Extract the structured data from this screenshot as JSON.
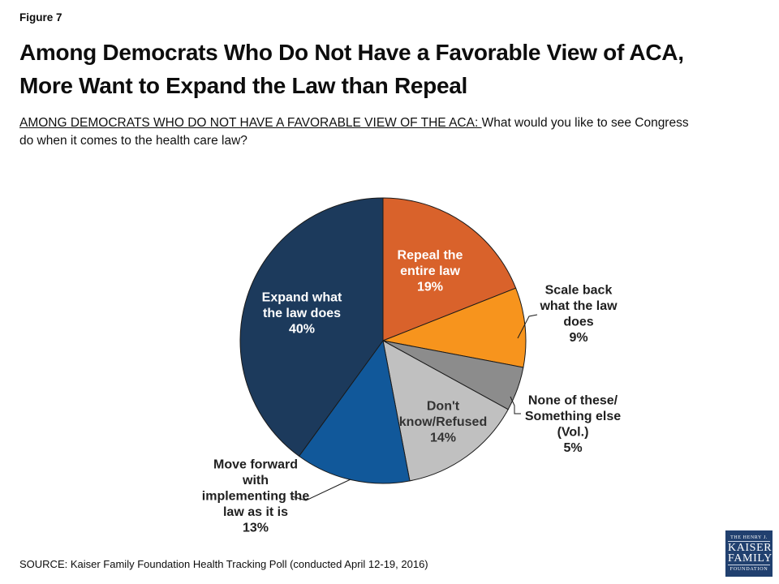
{
  "figure_label": "Figure 7",
  "title": {
    "line1": "Among Democrats Who Do Not Have a Favorable View of ACA,",
    "line2": "More Want to Expand the Law than Repeal"
  },
  "subtitle": {
    "underlined": "AMONG DEMOCRATS WHO DO NOT HAVE A FAVORABLE VIEW OF THE ACA: ",
    "rest_line1": "What would you like to see Congress",
    "line2": "do when it comes to the health care law?"
  },
  "source": "SOURCE: Kaiser Family Foundation Health Tracking Poll (conducted April 12-19, 2016)",
  "logo": {
    "line1": "THE HENRY J.",
    "line2": "KAISER",
    "line3": "FAMILY",
    "line4": "FOUNDATION",
    "bg_color": "#21406F"
  },
  "chart_data": {
    "type": "pie",
    "title": "What would you like to see Congress do when it comes to the health care law? (Democrats without a favorable view of the ACA)",
    "start_angle": "12 o'clock, clockwise",
    "total": 100,
    "outline_color": "#1A1A1A",
    "slices": [
      {
        "label": "Repeal the entire law",
        "value": 19,
        "pct_label": "19%",
        "color": "#D9622B",
        "text_color": "#FFFFFF",
        "placement": "inside",
        "label_lines": [
          "Repeal the",
          "entire law",
          "19%"
        ]
      },
      {
        "label": "Scale back what the law does",
        "value": 9,
        "pct_label": "9%",
        "color": "#F7941D",
        "text_color": "#1F1F1F",
        "placement": "outside",
        "label_lines": [
          "Scale back",
          "what the law",
          "does",
          "9%"
        ]
      },
      {
        "label": "None of these/Something else (Vol.)",
        "value": 5,
        "pct_label": "5%",
        "color": "#8C8C8C",
        "text_color": "#1F1F1F",
        "placement": "outside",
        "label_lines": [
          "None of these/",
          "Something else",
          "(Vol.)",
          "5%"
        ]
      },
      {
        "label": "Don't know/Refused",
        "value": 14,
        "pct_label": "14%",
        "color": "#C0C0C0",
        "text_color": "#333333",
        "placement": "inside",
        "label_lines": [
          "Don't",
          "know/Refused",
          "14%"
        ]
      },
      {
        "label": "Move forward with implementing the law as it is",
        "value": 13,
        "pct_label": "13%",
        "color": "#11589A",
        "text_color": "#1F1F1F",
        "placement": "outside",
        "label_lines": [
          "Move forward",
          "with",
          "implementing the",
          "law as it is",
          "13%"
        ]
      },
      {
        "label": "Expand what the law does",
        "value": 40,
        "pct_label": "40%",
        "color": "#1C3A5C",
        "text_color": "#FFFFFF",
        "placement": "inside",
        "label_lines": [
          "Expand what",
          "the law does",
          "40%"
        ]
      }
    ]
  }
}
